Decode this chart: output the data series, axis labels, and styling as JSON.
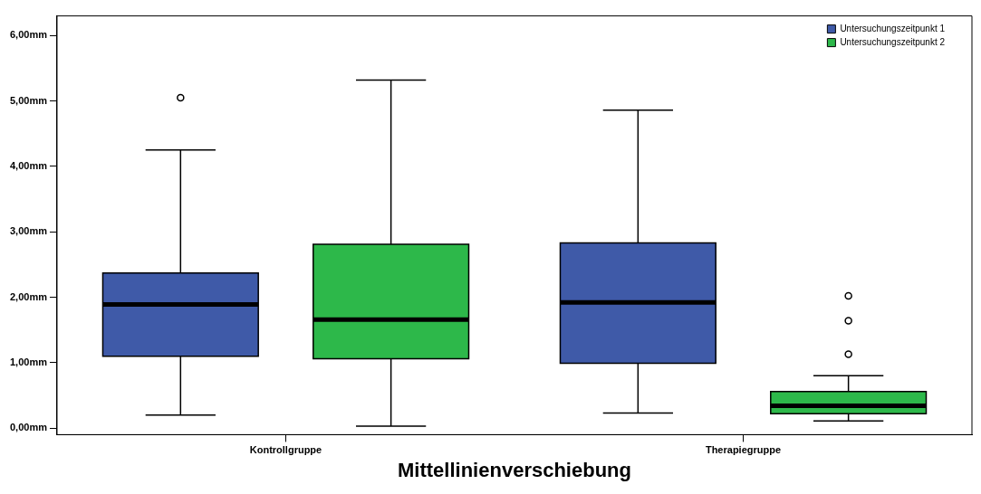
{
  "chart_data": {
    "type": "box",
    "xlabel": "Mittellinienverschiebung",
    "categories": [
      "Kontrollgruppe",
      "Therapiegruppe"
    ],
    "ylim": [
      -0.1,
      6.3
    ],
    "yticks": [
      {
        "value": 0,
        "label": "0,00mm"
      },
      {
        "value": 1,
        "label": "1,00mm"
      },
      {
        "value": 2,
        "label": "2,00mm"
      },
      {
        "value": 3,
        "label": "3,00mm"
      },
      {
        "value": 4,
        "label": "4,00mm"
      },
      {
        "value": 5,
        "label": "5,00mm"
      },
      {
        "value": 6,
        "label": "6,00mm"
      }
    ],
    "legend": "top right",
    "series": [
      {
        "name": "Untersuchungszeitpunkt 1",
        "color": "#3f5aa8",
        "boxes": [
          {
            "low": 0.2,
            "q1": 1.1,
            "median": 1.89,
            "q3": 2.37,
            "high": 4.25,
            "outliers": [
              5.05
            ]
          },
          {
            "low": 0.23,
            "q1": 0.99,
            "median": 1.92,
            "q3": 2.83,
            "high": 4.86
          }
        ]
      },
      {
        "name": "Untersuchungszeitpunkt 2",
        "color": "#2db84a",
        "boxes": [
          {
            "low": 0.03,
            "q1": 1.06,
            "median": 1.66,
            "q3": 2.81,
            "high": 5.32
          },
          {
            "low": 0.11,
            "q1": 0.22,
            "median": 0.34,
            "q3": 0.56,
            "high": 0.8,
            "outliers": [
              1.13,
              1.64,
              2.02
            ]
          }
        ]
      }
    ]
  }
}
